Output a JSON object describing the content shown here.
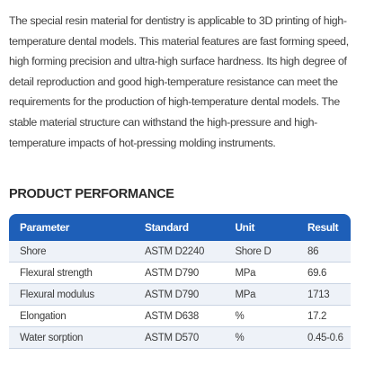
{
  "intro": {
    "paragraph": "The special resin material for dentistry is applicable to 3D printing of high-temperature dental models. This material features are fast forming speed, high forming precision and ultra-high surface hardness. Its high degree of detail reproduction and good high-temperature resistance can meet the requirements for the production of high-temperature dental models. The stable material structure can withstand the high-pressure and high-temperature impacts of hot-pressing molding instruments."
  },
  "performance": {
    "title": "PRODUCT PERFORMANCE",
    "headers": [
      "Parameter",
      "Standard",
      "Unit",
      "Result"
    ],
    "rows": [
      {
        "parameter": "Shore",
        "standard": "ASTM D2240",
        "unit": "Shore D",
        "result": "86"
      },
      {
        "parameter": "Flexural strength",
        "standard": "ASTM D790",
        "unit": "MPa",
        "result": "69.6"
      },
      {
        "parameter": "Flexural modulus",
        "standard": "ASTM D790",
        "unit": "MPa",
        "result": "1713"
      },
      {
        "parameter": "Elongation",
        "standard": "ASTM D638",
        "unit": "%",
        "result": "17.2"
      },
      {
        "parameter": "Water sorption",
        "standard": "ASTM D570",
        "unit": "%",
        "result": "0.45-0.6"
      }
    ]
  },
  "colors": {
    "header_bg": "#1e5fb8",
    "row_alt_bg": "#eef2f8"
  }
}
